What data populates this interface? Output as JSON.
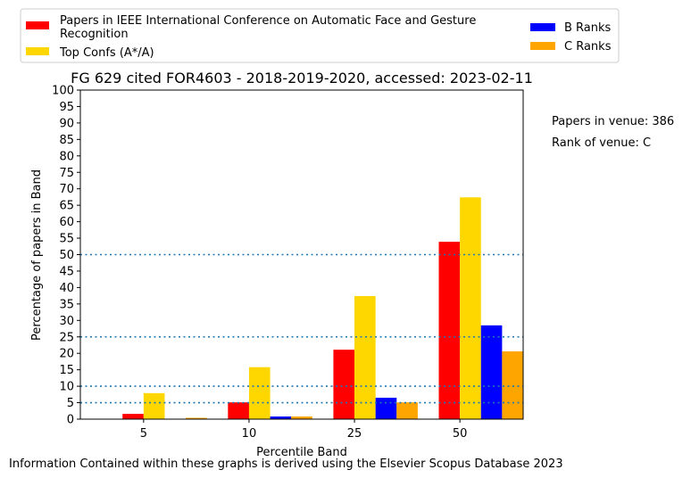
{
  "chart_data": {
    "type": "bar",
    "title": "FG 629 cited FOR4603 - 2018-2019-2020, accessed: 2023-02-11",
    "xlabel": "Percentile Band",
    "ylabel": "Percentage of papers in Band",
    "categories": [
      "5",
      "10",
      "25",
      "50"
    ],
    "ylim": [
      0,
      100
    ],
    "yticks": [
      "0",
      "5",
      "10",
      "15",
      "20",
      "25",
      "30",
      "35",
      "40",
      "45",
      "50",
      "55",
      "60",
      "65",
      "70",
      "75",
      "80",
      "85",
      "90",
      "95",
      "100"
    ],
    "series": [
      {
        "name": "Papers in IEEE International Conference on Automatic Face and Gesture Recognition",
        "color": "#ff0000",
        "values": [
          1.6,
          5.1,
          21.1,
          53.9
        ]
      },
      {
        "name": "Top Confs (A*/A)",
        "color": "#ffd700",
        "values": [
          7.9,
          15.8,
          37.4,
          67.4
        ]
      },
      {
        "name": "B Ranks",
        "color": "#0000ff",
        "values": [
          0.0,
          0.8,
          6.5,
          28.5
        ]
      },
      {
        "name": "C Ranks",
        "color": "#ffa500",
        "values": [
          0.4,
          0.8,
          5.1,
          20.6
        ]
      }
    ],
    "reference_lines": [
      5,
      10,
      25,
      50
    ],
    "reference_line_color": "#1f77b4",
    "grid": false,
    "legend_position": "top",
    "annotations": [
      "Papers in venue: 386",
      "Rank of venue: C"
    ],
    "footer": "Information Contained within these graphs is derived using the Elsevier Scopus Database 2023"
  }
}
